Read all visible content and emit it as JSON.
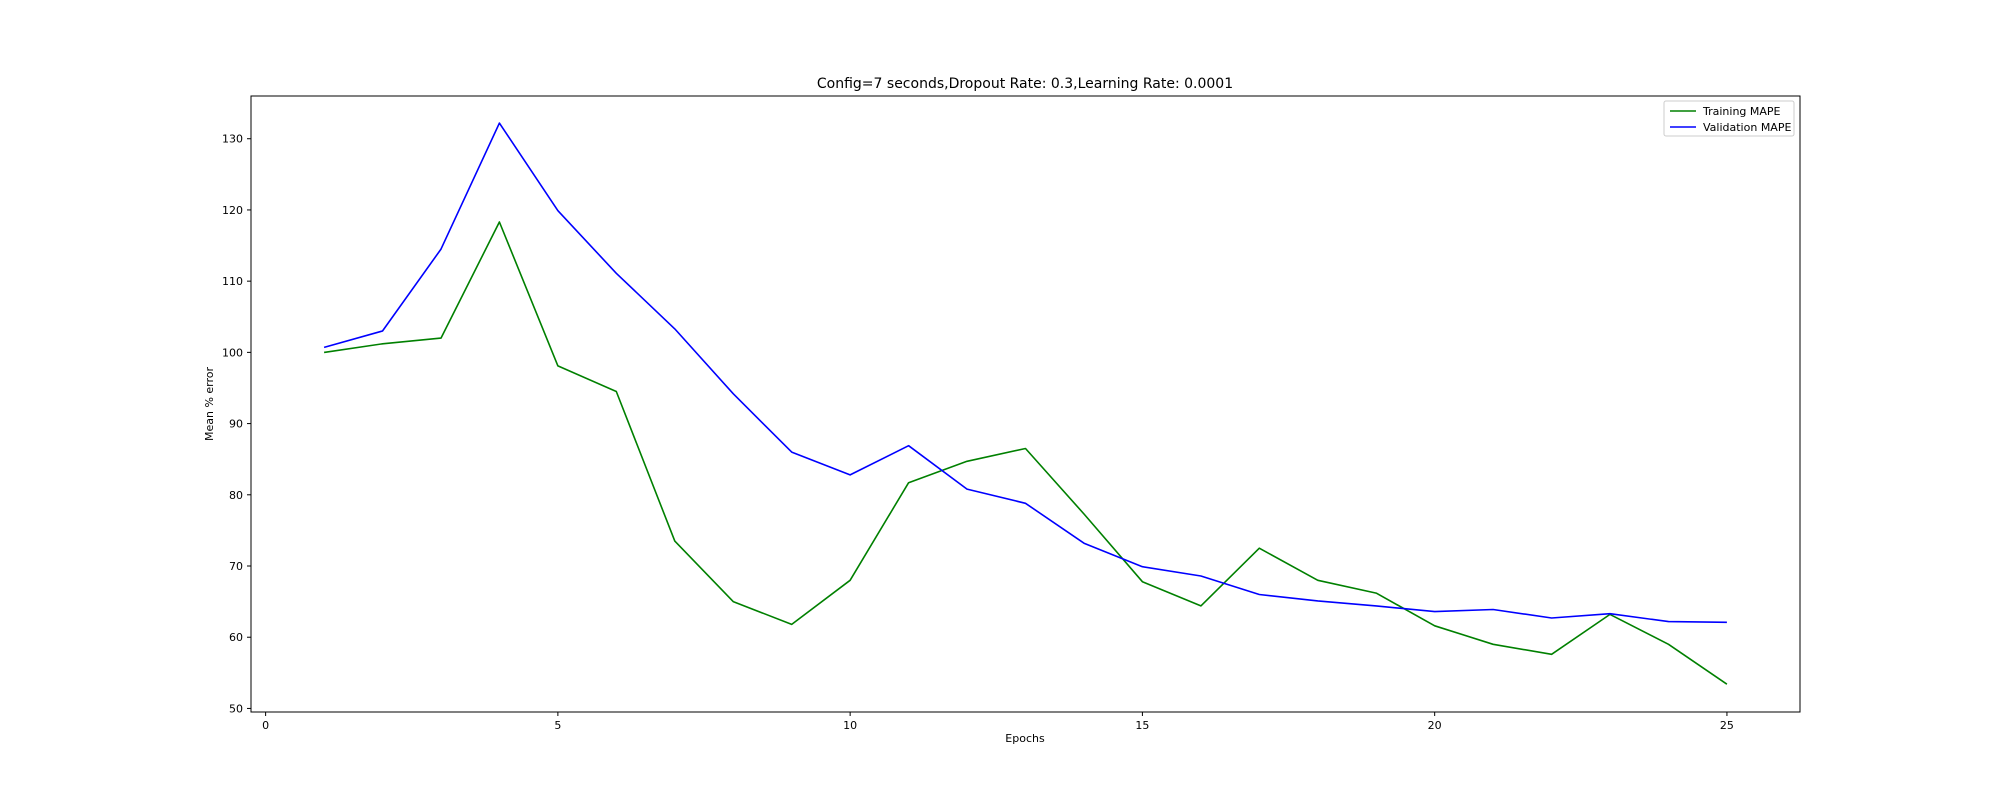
{
  "chart_data": {
    "type": "line",
    "title": "Config=7 seconds,Dropout Rate: 0.3,Learning Rate: 0.0001",
    "xlabel": "Epochs",
    "ylabel": "Mean % error",
    "xlim": [
      -0.25,
      26.25
    ],
    "ylim": [
      49.5,
      136
    ],
    "xticks": [
      0,
      5,
      10,
      15,
      20,
      25
    ],
    "yticks": [
      50,
      60,
      70,
      80,
      90,
      100,
      110,
      120,
      130
    ],
    "grid": false,
    "legend_position": "top-right",
    "x": [
      1,
      2,
      3,
      4,
      5,
      6,
      7,
      8,
      9,
      10,
      11,
      12,
      13,
      14,
      15,
      16,
      17,
      18,
      19,
      20,
      21,
      22,
      23,
      24,
      25
    ],
    "series": [
      {
        "name": "Training MAPE",
        "color": "#008000",
        "values": [
          100.0,
          101.2,
          102.0,
          118.3,
          98.1,
          94.5,
          73.5,
          65.0,
          61.8,
          68.0,
          81.7,
          84.7,
          86.5,
          77.3,
          67.8,
          64.4,
          72.5,
          68.0,
          66.2,
          61.6,
          59.0,
          57.6,
          63.2,
          59.0,
          53.4
        ]
      },
      {
        "name": "Validation MAPE",
        "color": "#0000ff",
        "values": [
          100.7,
          103.0,
          114.5,
          132.2,
          119.9,
          111.1,
          103.3,
          94.2,
          86.0,
          82.8,
          86.9,
          80.8,
          78.8,
          73.2,
          69.9,
          68.6,
          66.0,
          65.1,
          64.4,
          63.6,
          63.9,
          62.7,
          63.3,
          62.2,
          62.1
        ]
      }
    ]
  }
}
